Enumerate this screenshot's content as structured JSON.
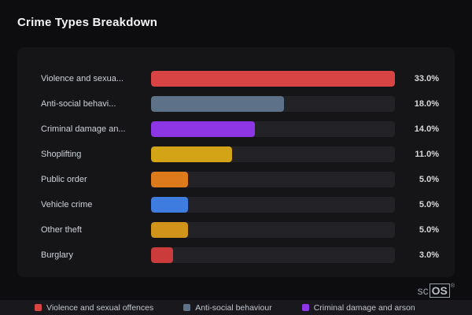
{
  "title": "Crime Types Breakdown",
  "chart_data": {
    "type": "bar",
    "orientation": "horizontal",
    "title": "Crime Types Breakdown",
    "categories": [
      "Violence and sexua...",
      "Anti-social behavi...",
      "Criminal damage an...",
      "Shoplifting",
      "Public order",
      "Vehicle crime",
      "Other theft",
      "Burglary"
    ],
    "values": [
      33.0,
      18.0,
      14.0,
      11.0,
      5.0,
      5.0,
      5.0,
      3.0
    ],
    "value_labels": [
      "33.0%",
      "18.0%",
      "14.0%",
      "11.0%",
      "5.0%",
      "5.0%",
      "5.0%",
      "3.0%"
    ],
    "bar_colors": [
      "#d84444",
      "#5d7289",
      "#8c36e6",
      "#d4a417",
      "#dd7a1c",
      "#3f7ce0",
      "#d1941a",
      "#cc3b3b"
    ],
    "xlim": [
      0,
      33
    ],
    "track_color": "#222227",
    "grid": false,
    "legend_position": "bottom",
    "legend": [
      {
        "label": "Violence and sexual offences",
        "color": "#d84444"
      },
      {
        "label": "Anti-social behaviour",
        "color": "#5d7289"
      },
      {
        "label": "Criminal damage and arson",
        "color": "#8c36e6"
      }
    ]
  },
  "logo": {
    "prefix": "sc",
    "box": "OS",
    "reg": "®"
  }
}
